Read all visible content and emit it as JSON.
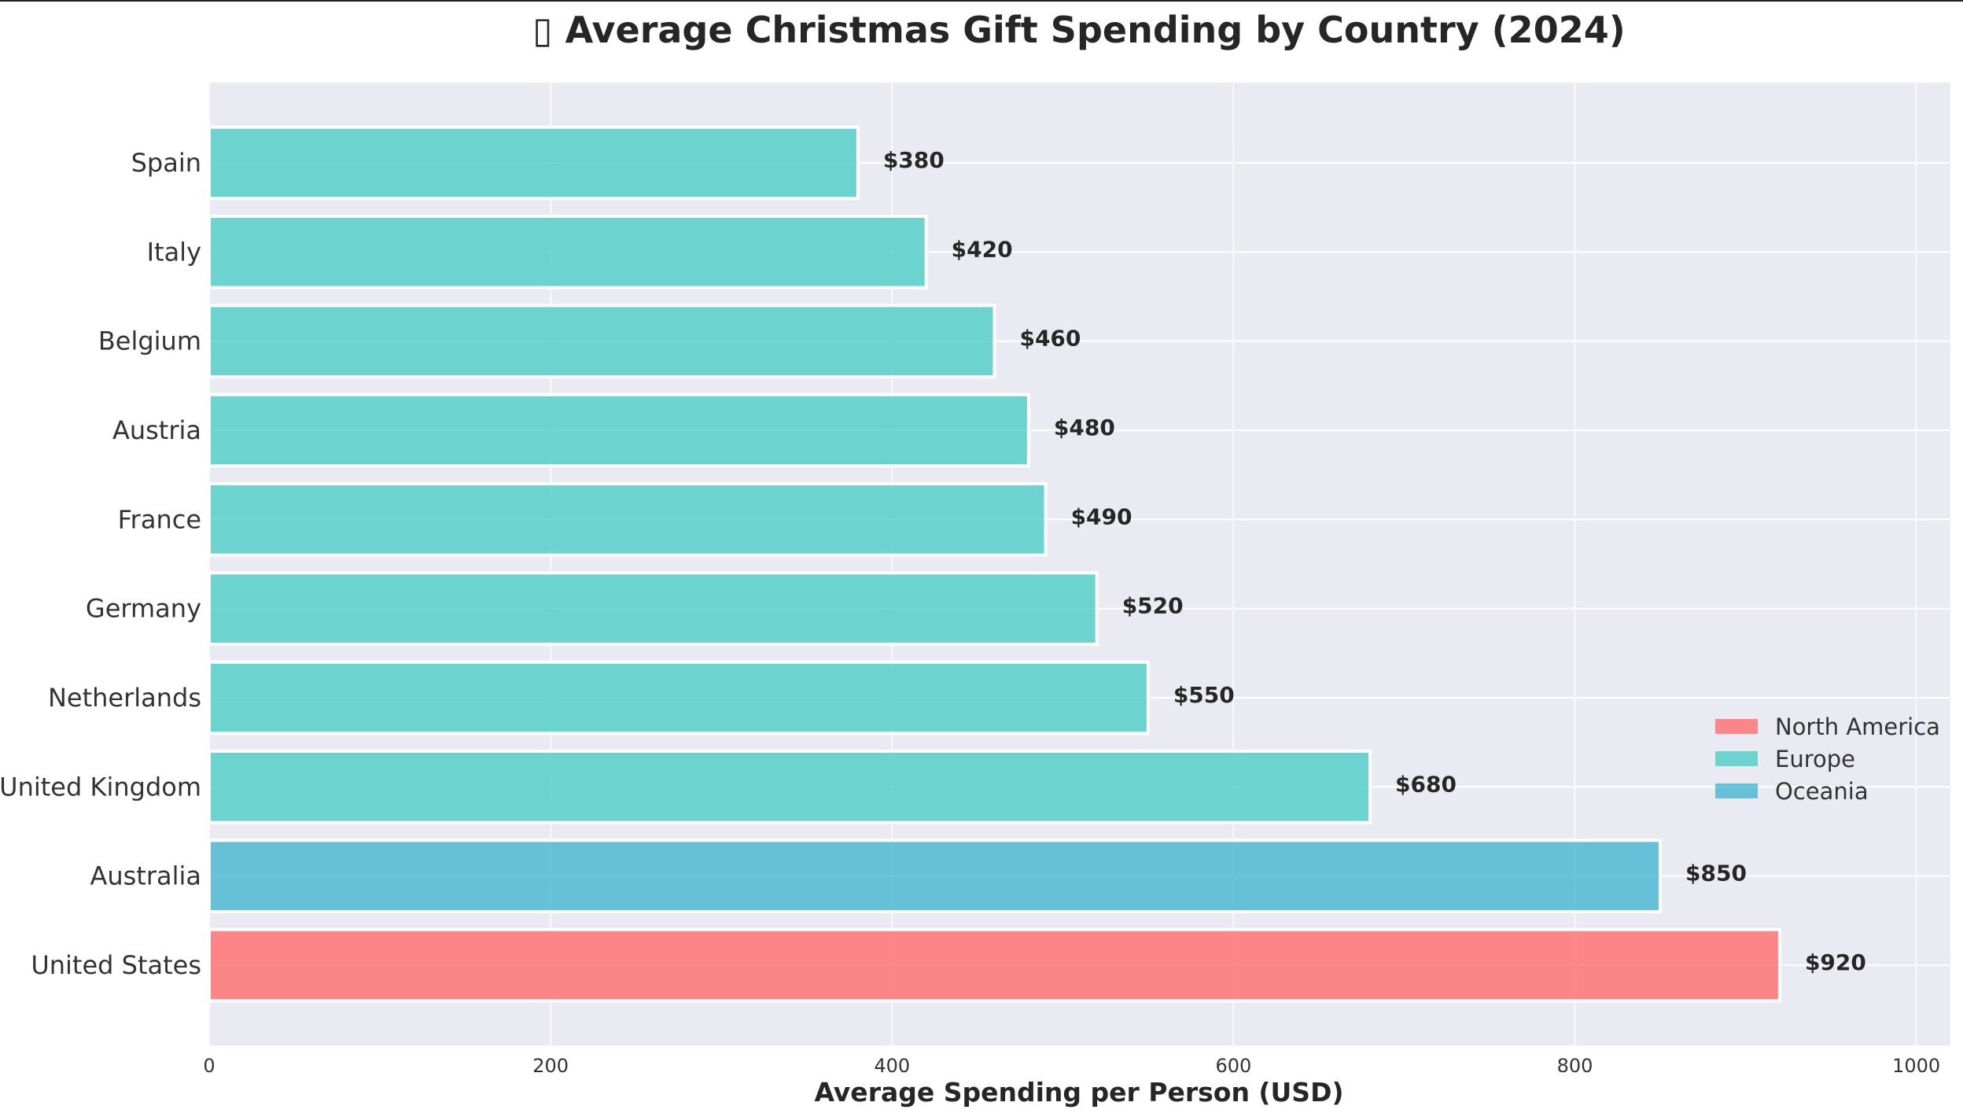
{
  "chart_data": {
    "type": "bar",
    "orientation": "horizontal",
    "title": "▯ Average Christmas Gift Spending by Country (2024)",
    "xlabel": "Average Spending per Person (USD)",
    "ylabel": "",
    "xlim": [
      0,
      1020
    ],
    "xticks": [
      0,
      200,
      400,
      600,
      800,
      1000
    ],
    "grid": true,
    "legend_placement": "lower-right",
    "categories": [
      "Spain",
      "Italy",
      "Belgium",
      "Austria",
      "France",
      "Germany",
      "Netherlands",
      "United Kingdom",
      "Australia",
      "United States"
    ],
    "values": [
      380,
      420,
      460,
      480,
      490,
      520,
      550,
      680,
      850,
      920
    ],
    "regions": [
      "Europe",
      "Europe",
      "Europe",
      "Europe",
      "Europe",
      "Europe",
      "Europe",
      "Europe",
      "Oceania",
      "North America"
    ],
    "value_labels": [
      "$380",
      "$420",
      "$460",
      "$480",
      "$490",
      "$520",
      "$550",
      "$680",
      "$850",
      "$920"
    ],
    "legend": [
      {
        "name": "North America",
        "color": "#FF6B6B"
      },
      {
        "name": "Europe",
        "color": "#4ECDC4"
      },
      {
        "name": "Oceania",
        "color": "#45B7D1"
      }
    ],
    "colors": {
      "North America": "#FF6B6B",
      "Europe": "#4ECDC4",
      "Oceania": "#45B7D1",
      "background": "#EAEAF2",
      "grid": "#FFFFFF"
    }
  }
}
